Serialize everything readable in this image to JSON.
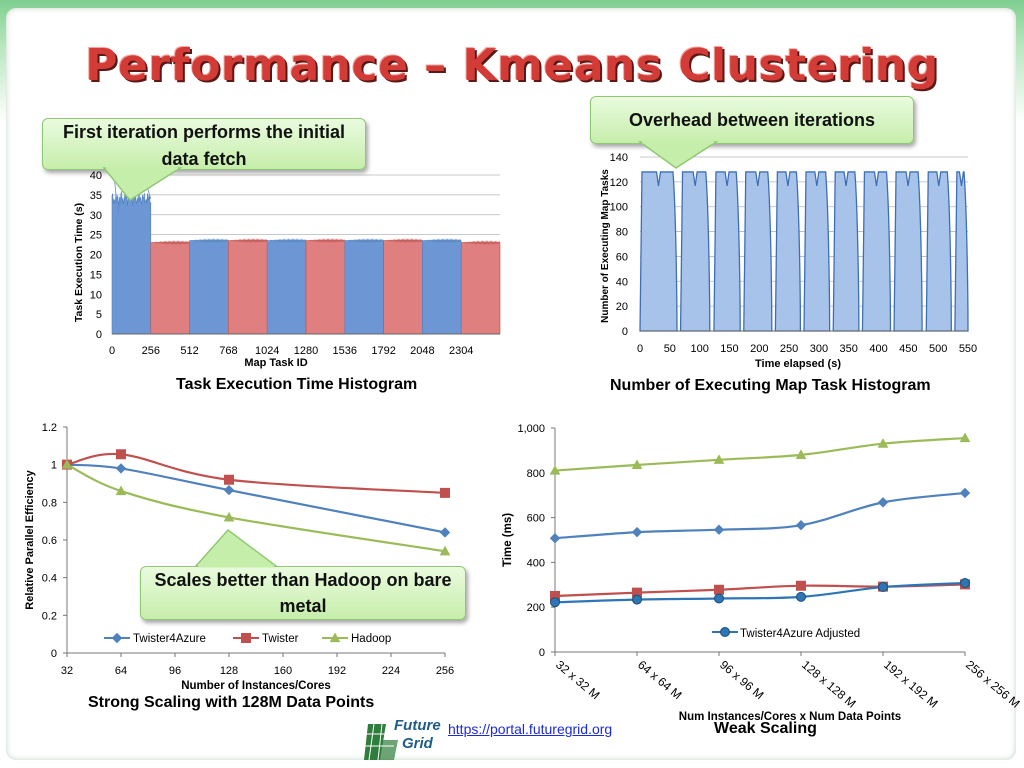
{
  "title": "Performance – Kmeans Clustering",
  "callouts": {
    "first": "First iteration performs the initial data fetch",
    "overhead": "Overhead between iterations",
    "scales": "Scales better than Hadoop on bare metal"
  },
  "captions": {
    "hist1": "Task Execution Time Histogram",
    "hist2": "Number of Executing Map Task Histogram",
    "strong": "Strong Scaling with 128M Data Points",
    "weak": "Weak Scaling"
  },
  "link": "https://portal.futuregrid.org",
  "logo_text": "Future Grid",
  "colors": {
    "title": "#d23b36",
    "blue": "#4f81bd",
    "red": "#c0504d",
    "green": "#9bbb59",
    "callout": "#c6eeab"
  },
  "chart_data": [
    {
      "type": "bar",
      "title": "",
      "xlabel": "Map Task ID",
      "ylabel": "Task Execution Time (s)",
      "xlim": [
        0,
        2560
      ],
      "ylim": [
        0,
        40
      ],
      "xticks": [
        0,
        256,
        512,
        768,
        1024,
        1280,
        1536,
        1792,
        2048,
        2304
      ],
      "yticks": [
        0,
        5,
        10,
        15,
        20,
        25,
        30,
        35,
        40
      ],
      "groups": [
        {
          "start": 0,
          "end": 256,
          "level": 34,
          "color": "blue"
        },
        {
          "start": 256,
          "end": 512,
          "level": 23,
          "color": "red"
        },
        {
          "start": 512,
          "end": 768,
          "level": 23.5,
          "color": "blue"
        },
        {
          "start": 768,
          "end": 1024,
          "level": 23.5,
          "color": "red"
        },
        {
          "start": 1024,
          "end": 1280,
          "level": 23.5,
          "color": "blue"
        },
        {
          "start": 1280,
          "end": 1536,
          "level": 23.5,
          "color": "red"
        },
        {
          "start": 1536,
          "end": 1792,
          "level": 23.5,
          "color": "blue"
        },
        {
          "start": 1792,
          "end": 2048,
          "level": 23.5,
          "color": "red"
        },
        {
          "start": 2048,
          "end": 2304,
          "level": 23.5,
          "color": "blue"
        },
        {
          "start": 2304,
          "end": 2560,
          "level": 23,
          "color": "red"
        }
      ]
    },
    {
      "type": "area",
      "title": "",
      "xlabel": "Time elapsed (s)",
      "ylabel": "Number of Executing Map Tasks",
      "xlim": [
        0,
        550
      ],
      "ylim": [
        0,
        140
      ],
      "xticks": [
        0,
        50,
        100,
        150,
        200,
        250,
        300,
        350,
        400,
        450,
        500,
        550
      ],
      "yticks": [
        0,
        20,
        40,
        60,
        80,
        100,
        120,
        140
      ],
      "plateau": 128,
      "iterations": [
        [
          0,
          62
        ],
        [
          68,
          117
        ],
        [
          124,
          168
        ],
        [
          174,
          221
        ],
        [
          227,
          269
        ],
        [
          275,
          318
        ],
        [
          324,
          367
        ],
        [
          373,
          420
        ],
        [
          426,
          473
        ],
        [
          480,
          522
        ],
        [
          528,
          550
        ]
      ]
    },
    {
      "type": "line",
      "title": "",
      "xlabel": "Number of Instances/Cores",
      "ylabel": "Relative Parallel Efficiency",
      "xlim": [
        32,
        256
      ],
      "ylim": [
        0,
        1.2
      ],
      "xticks": [
        32,
        64,
        96,
        128,
        160,
        192,
        224,
        256
      ],
      "yticks": [
        0,
        0.2,
        0.4,
        0.6,
        0.8,
        1,
        1.2
      ],
      "legend": "bottom",
      "series": [
        {
          "name": "Twister4Azure",
          "color": "#4f81bd",
          "marker": "diamond",
          "x": [
            32,
            64,
            128,
            256
          ],
          "values": [
            1,
            0.98,
            0.865,
            0.64
          ]
        },
        {
          "name": "Twister",
          "color": "#c0504d",
          "marker": "square",
          "x": [
            32,
            64,
            128,
            256
          ],
          "values": [
            1,
            1.055,
            0.92,
            0.85
          ]
        },
        {
          "name": "Hadoop",
          "color": "#9bbb59",
          "marker": "triangle",
          "x": [
            32,
            64,
            128,
            256
          ],
          "values": [
            1,
            0.86,
            0.72,
            0.54
          ]
        }
      ]
    },
    {
      "type": "line",
      "title": "",
      "xlabel": "Num  Instances/Cores x Num Data Points",
      "ylabel": "Time (ms)",
      "ylim": [
        0,
        1000
      ],
      "yticks": [
        "0",
        "200",
        "400",
        "600",
        "800",
        "1,000"
      ],
      "categories": [
        "32 x 32 M",
        "64 x 64 M",
        "96 x 96 M",
        "128 x 128 M",
        "192 x 192 M",
        "256 x 256 M"
      ],
      "legend": "bottom-right",
      "series": [
        {
          "color": "#9bbb59",
          "marker": "triangle",
          "values": [
            810,
            835,
            858,
            880,
            930,
            955
          ]
        },
        {
          "color": "#4f81bd",
          "marker": "diamond",
          "values": [
            508,
            535,
            546,
            566,
            668,
            710
          ]
        },
        {
          "color": "#c0504d",
          "marker": "square",
          "values": [
            250,
            265,
            278,
            296,
            292,
            302
          ]
        },
        {
          "name": "Twister4Azure Adjusted",
          "color": "#2e75b6",
          "marker": "circle",
          "values": [
            222,
            234,
            239,
            246,
            290,
            308
          ]
        }
      ]
    }
  ]
}
